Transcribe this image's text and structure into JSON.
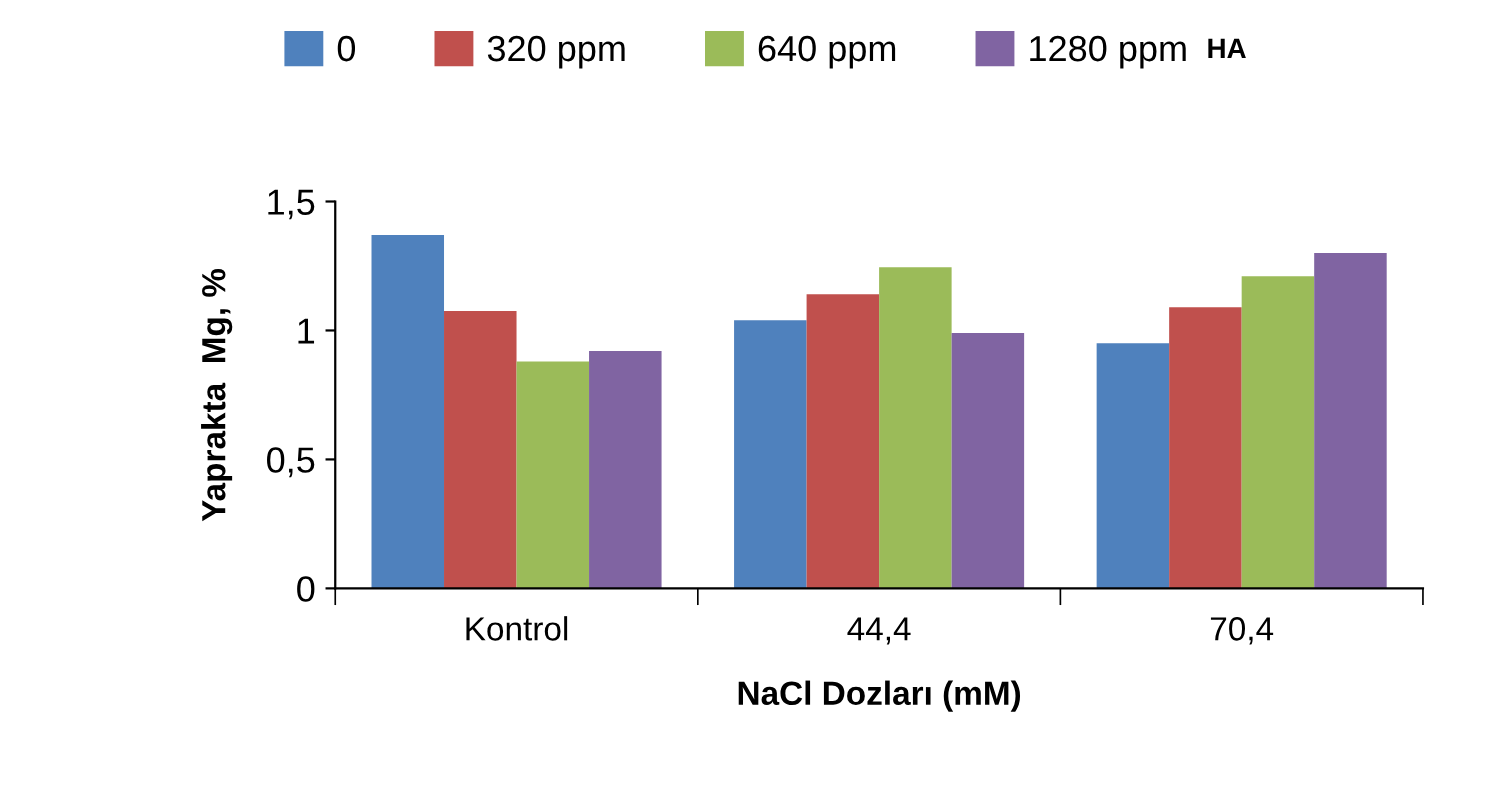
{
  "chart_data": {
    "type": "bar",
    "xlabel": "NaCl Dozları (mM)",
    "ylabel": "Yaprakta  Mg, %",
    "categories": [
      "Kontrol",
      "44,4",
      "70,4"
    ],
    "series": [
      {
        "name": "0",
        "color": "#4f81bd",
        "values": [
          1.37,
          1.04,
          0.95
        ]
      },
      {
        "name": "320 ppm",
        "color": "#c0504d",
        "values": [
          1.075,
          1.14,
          1.09
        ]
      },
      {
        "name": "640 ppm",
        "color": "#9bbb59",
        "values": [
          0.88,
          1.245,
          1.21
        ]
      },
      {
        "name": "1280 ppm",
        "color": "#8064a2",
        "values": [
          0.92,
          0.99,
          1.3
        ]
      }
    ],
    "ylim": [
      0,
      1.5
    ],
    "yticks": [
      {
        "value": 0,
        "label": "0"
      },
      {
        "value": 0.5,
        "label": "0,5"
      },
      {
        "value": 1,
        "label": "1"
      },
      {
        "value": 1.5,
        "label": "1,5"
      }
    ],
    "grid": false,
    "legend": "top",
    "annotations": [
      "HA"
    ]
  }
}
